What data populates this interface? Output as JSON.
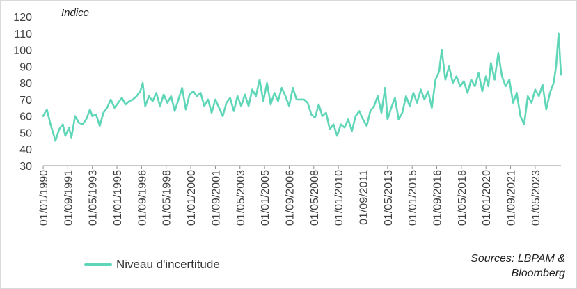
{
  "chart_data": {
    "type": "line",
    "title": "",
    "ylabel": "Indice",
    "xlabel": "",
    "ylim": [
      30,
      120
    ],
    "yticks": [
      30,
      40,
      50,
      60,
      70,
      80,
      90,
      100,
      110,
      120
    ],
    "xlim": [
      "1990-01-01",
      "2025-02-01"
    ],
    "xtick_labels": [
      "01/01/1990",
      "01/09/1991",
      "01/05/1993",
      "01/01/1995",
      "01/09/1996",
      "01/05/1998",
      "01/01/2000",
      "01/09/2001",
      "01/05/2003",
      "01/01/2005",
      "01/09/2006",
      "01/05/2008",
      "01/01/2010",
      "01/09/2011",
      "01/05/2013",
      "01/01/2015",
      "01/09/2016",
      "01/05/2018",
      "01/01/2020",
      "01/09/2021",
      "01/05/2023"
    ],
    "grid": false,
    "legend_position": "bottom-left",
    "series": [
      {
        "name": "Niveau d'incertitude",
        "color": "#5ed6b7",
        "points": [
          [
            "1990-01",
            60
          ],
          [
            "1990-04",
            64
          ],
          [
            "1990-07",
            55
          ],
          [
            "1990-09",
            50
          ],
          [
            "1990-11",
            45
          ],
          [
            "1991-02",
            52
          ],
          [
            "1991-05",
            55
          ],
          [
            "1991-07",
            48
          ],
          [
            "1991-10",
            53
          ],
          [
            "1991-12",
            47
          ],
          [
            "1992-03",
            60
          ],
          [
            "1992-06",
            56
          ],
          [
            "1992-09",
            55
          ],
          [
            "1992-12",
            58
          ],
          [
            "1993-03",
            64
          ],
          [
            "1993-05",
            60
          ],
          [
            "1993-08",
            61
          ],
          [
            "1993-11",
            54
          ],
          [
            "1994-02",
            62
          ],
          [
            "1994-05",
            65
          ],
          [
            "1994-08",
            70
          ],
          [
            "1994-11",
            65
          ],
          [
            "1995-02",
            68
          ],
          [
            "1995-05",
            71
          ],
          [
            "1995-08",
            67
          ],
          [
            "1995-11",
            69
          ],
          [
            "1996-02",
            70
          ],
          [
            "1996-05",
            72
          ],
          [
            "1996-08",
            75
          ],
          [
            "1996-10",
            80
          ],
          [
            "1996-12",
            66
          ],
          [
            "1997-03",
            72
          ],
          [
            "1997-06",
            69
          ],
          [
            "1997-09",
            74
          ],
          [
            "1997-12",
            66
          ],
          [
            "1998-03",
            73
          ],
          [
            "1998-06",
            68
          ],
          [
            "1998-09",
            72
          ],
          [
            "1998-12",
            63
          ],
          [
            "1999-03",
            70
          ],
          [
            "1999-06",
            77
          ],
          [
            "1999-09",
            64
          ],
          [
            "1999-12",
            73
          ],
          [
            "2000-03",
            75
          ],
          [
            "2000-06",
            72
          ],
          [
            "2000-09",
            74
          ],
          [
            "2000-12",
            66
          ],
          [
            "2001-03",
            70
          ],
          [
            "2001-06",
            62
          ],
          [
            "2001-09",
            70
          ],
          [
            "2001-12",
            65
          ],
          [
            "2002-03",
            60
          ],
          [
            "2002-06",
            68
          ],
          [
            "2002-09",
            71
          ],
          [
            "2002-12",
            63
          ],
          [
            "2003-03",
            72
          ],
          [
            "2003-06",
            66
          ],
          [
            "2003-09",
            73
          ],
          [
            "2003-12",
            66
          ],
          [
            "2004-03",
            76
          ],
          [
            "2004-06",
            72
          ],
          [
            "2004-09",
            82
          ],
          [
            "2004-12",
            69
          ],
          [
            "2005-03",
            80
          ],
          [
            "2005-06",
            67
          ],
          [
            "2005-09",
            74
          ],
          [
            "2005-12",
            69
          ],
          [
            "2006-03",
            77
          ],
          [
            "2006-06",
            72
          ],
          [
            "2006-09",
            66
          ],
          [
            "2006-12",
            77
          ],
          [
            "2007-03",
            70
          ],
          [
            "2007-06",
            70
          ],
          [
            "2007-09",
            70
          ],
          [
            "2007-12",
            68
          ],
          [
            "2008-03",
            61
          ],
          [
            "2008-06",
            59
          ],
          [
            "2008-09",
            67
          ],
          [
            "2008-12",
            60
          ],
          [
            "2009-03",
            62
          ],
          [
            "2009-06",
            52
          ],
          [
            "2009-09",
            55
          ],
          [
            "2009-12",
            48
          ],
          [
            "2010-03",
            55
          ],
          [
            "2010-06",
            53
          ],
          [
            "2010-09",
            58
          ],
          [
            "2010-12",
            51
          ],
          [
            "2011-03",
            60
          ],
          [
            "2011-06",
            63
          ],
          [
            "2011-09",
            58
          ],
          [
            "2011-12",
            54
          ],
          [
            "2012-03",
            63
          ],
          [
            "2012-06",
            66
          ],
          [
            "2012-09",
            72
          ],
          [
            "2012-12",
            62
          ],
          [
            "2013-03",
            77
          ],
          [
            "2013-05",
            58
          ],
          [
            "2013-08",
            65
          ],
          [
            "2013-11",
            71
          ],
          [
            "2014-02",
            58
          ],
          [
            "2014-05",
            62
          ],
          [
            "2014-08",
            72
          ],
          [
            "2014-11",
            66
          ],
          [
            "2015-02",
            74
          ],
          [
            "2015-05",
            68
          ],
          [
            "2015-08",
            76
          ],
          [
            "2015-11",
            70
          ],
          [
            "2016-02",
            75
          ],
          [
            "2016-05",
            65
          ],
          [
            "2016-08",
            82
          ],
          [
            "2016-11",
            87
          ],
          [
            "2017-01",
            100
          ],
          [
            "2017-04",
            82
          ],
          [
            "2017-07",
            90
          ],
          [
            "2017-10",
            80
          ],
          [
            "2018-01",
            84
          ],
          [
            "2018-04",
            78
          ],
          [
            "2018-07",
            81
          ],
          [
            "2018-10",
            74
          ],
          [
            "2019-01",
            82
          ],
          [
            "2019-04",
            78
          ],
          [
            "2019-07",
            86
          ],
          [
            "2019-10",
            75
          ],
          [
            "2020-01",
            84
          ],
          [
            "2020-03",
            78
          ],
          [
            "2020-05",
            92
          ],
          [
            "2020-08",
            82
          ],
          [
            "2020-11",
            98
          ],
          [
            "2021-02",
            84
          ],
          [
            "2021-05",
            78
          ],
          [
            "2021-08",
            82
          ],
          [
            "2021-11",
            68
          ],
          [
            "2022-02",
            74
          ],
          [
            "2022-05",
            60
          ],
          [
            "2022-08",
            55
          ],
          [
            "2022-11",
            72
          ],
          [
            "2023-02",
            68
          ],
          [
            "2023-05",
            76
          ],
          [
            "2023-08",
            72
          ],
          [
            "2023-11",
            79
          ],
          [
            "2024-02",
            64
          ],
          [
            "2024-05",
            74
          ],
          [
            "2024-08",
            80
          ],
          [
            "2024-10",
            90
          ],
          [
            "2024-12",
            110
          ],
          [
            "2025-02",
            85
          ]
        ]
      }
    ]
  },
  "legend": {
    "label": "Niveau d'incertitude"
  },
  "sources": {
    "line1": "Sources: LBPAM &",
    "line2": "Bloomberg"
  }
}
